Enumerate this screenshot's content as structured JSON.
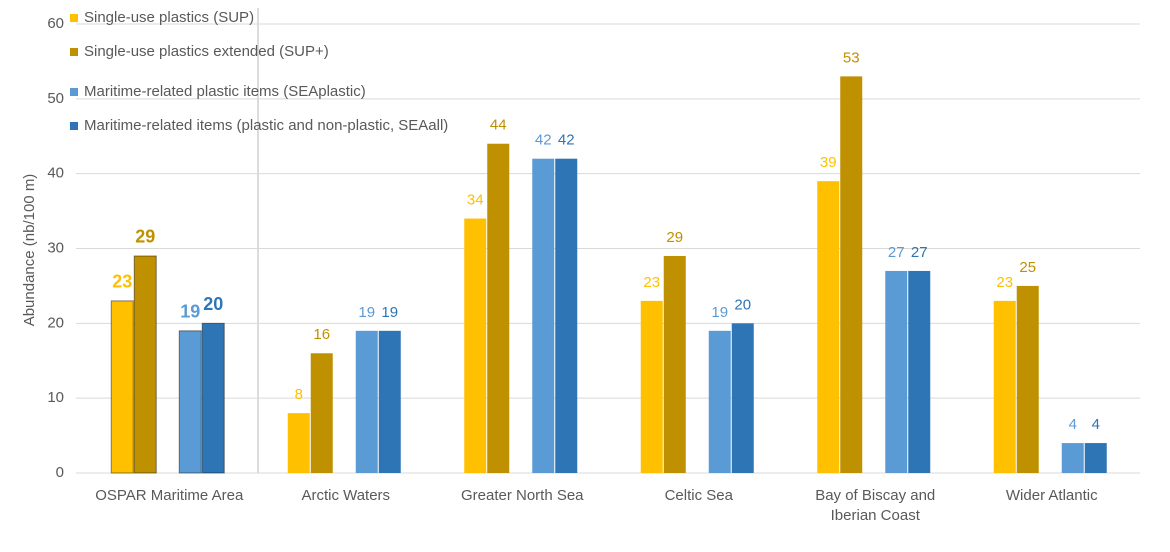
{
  "chart_data": {
    "type": "bar",
    "y_label": "Abundance (nb/100 m)",
    "categories": [
      "OSPAR Maritime Area",
      "Arctic Waters",
      "Greater North Sea",
      "Celtic Sea",
      "Bay of Biscay and Iberian Coast",
      "Wider Atlantic"
    ],
    "series": [
      {
        "name": "Single-use plastics (SUP)",
        "color": "#FFC000",
        "values": [
          23,
          8,
          34,
          23,
          39,
          23
        ]
      },
      {
        "name": "Single-use plastics extended (SUP+)",
        "color": "#BF9000",
        "values": [
          29,
          16,
          44,
          29,
          53,
          25
        ]
      },
      {
        "name": "Maritime-related plastic items (SEAplastic)",
        "color": "#5B9BD5",
        "values": [
          19,
          19,
          42,
          19,
          27,
          4
        ]
      },
      {
        "name": "Maritime-related items (plastic and non-plastic, SEAall)",
        "color": "#2E75B6",
        "values": [
          20,
          19,
          42,
          20,
          27,
          4
        ]
      }
    ],
    "ylim": [
      0,
      60
    ],
    "yticks": [
      0,
      10,
      20,
      30,
      40,
      50,
      60
    ],
    "grid": true,
    "legend": "top-left"
  }
}
